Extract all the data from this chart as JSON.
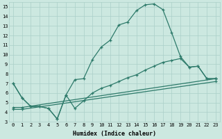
{
  "xlabel": "Humidex (Indice chaleur)",
  "bg_color": "#cce8e0",
  "grid_color": "#aacfc8",
  "line_color": "#2d7a6a",
  "xlim": [
    -0.5,
    23.5
  ],
  "ylim": [
    3,
    15.5
  ],
  "xticks": [
    0,
    1,
    2,
    3,
    4,
    5,
    6,
    7,
    8,
    9,
    10,
    11,
    12,
    13,
    14,
    15,
    16,
    17,
    18,
    19,
    20,
    21,
    22,
    23
  ],
  "yticks": [
    3,
    4,
    5,
    6,
    7,
    8,
    9,
    10,
    11,
    12,
    13,
    14,
    15
  ],
  "line1_x": [
    0,
    1,
    2,
    3,
    4,
    5,
    6,
    7,
    8,
    9,
    10,
    11,
    12,
    13,
    14,
    15,
    16,
    17,
    18,
    19,
    20,
    21,
    22,
    23
  ],
  "line1_y": [
    7.0,
    5.5,
    4.6,
    4.6,
    4.4,
    3.3,
    5.8,
    7.4,
    7.5,
    9.5,
    10.8,
    11.5,
    13.1,
    13.4,
    14.6,
    15.2,
    15.3,
    14.7,
    12.3,
    9.8,
    8.7,
    8.8,
    7.5,
    7.5
  ],
  "line2_x": [
    0,
    1,
    2,
    3,
    4,
    5,
    6,
    7,
    8,
    9,
    10,
    11,
    12,
    13,
    14,
    15,
    16,
    17,
    18,
    19,
    20,
    21,
    22,
    23
  ],
  "line2_y": [
    7.0,
    5.5,
    4.6,
    4.6,
    4.4,
    3.3,
    5.8,
    4.4,
    5.2,
    6.0,
    6.5,
    6.8,
    7.2,
    7.6,
    7.9,
    8.4,
    8.8,
    9.2,
    9.4,
    9.6,
    8.7,
    8.8,
    7.5,
    7.5
  ],
  "line3_x": [
    0,
    1,
    23
  ],
  "line3_y": [
    4.5,
    4.5,
    7.5
  ],
  "line4_x": [
    0,
    1,
    23
  ],
  "line4_y": [
    4.3,
    4.3,
    7.2
  ]
}
